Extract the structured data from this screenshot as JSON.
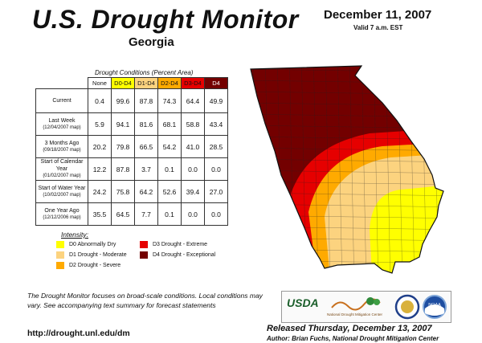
{
  "header": {
    "title": "U.S. Drought Monitor",
    "subtitle": "Georgia",
    "date": "December 11, 2007",
    "valid": "Valid 7 a.m. EST"
  },
  "table": {
    "caption": "Drought Conditions (Percent Area)",
    "columns": [
      "None",
      "D0-D4",
      "D1-D4",
      "D2-D4",
      "D3-D4",
      "D4"
    ],
    "column_colors": [
      "#ffffff",
      "#ffff00",
      "#fcd37f",
      "#ffaa00",
      "#e60000",
      "#730000"
    ],
    "rows": [
      {
        "label": "Current",
        "sub": "",
        "values": [
          "0.4",
          "99.6",
          "87.8",
          "74.3",
          "64.4",
          "49.9"
        ]
      },
      {
        "label": "Last Week",
        "sub": "(12/04/2007 map)",
        "values": [
          "5.9",
          "94.1",
          "81.6",
          "68.1",
          "58.8",
          "43.4"
        ]
      },
      {
        "label": "3 Months Ago",
        "sub": "(09/18/2007 map)",
        "values": [
          "20.2",
          "79.8",
          "66.5",
          "54.2",
          "41.0",
          "28.5"
        ]
      },
      {
        "label": "Start of Calendar Year",
        "sub": "(01/02/2007 map)",
        "values": [
          "12.2",
          "87.8",
          "3.7",
          "0.1",
          "0.0",
          "0.0"
        ]
      },
      {
        "label": "Start of Water Year",
        "sub": "(10/02/2007 map)",
        "values": [
          "24.2",
          "75.8",
          "64.2",
          "52.6",
          "39.4",
          "27.0"
        ]
      },
      {
        "label": "One Year Ago",
        "sub": "(12/12/2006 map)",
        "values": [
          "35.5",
          "64.5",
          "7.7",
          "0.1",
          "0.0",
          "0.0"
        ]
      }
    ]
  },
  "legend": {
    "title": "Intensity:",
    "items": [
      {
        "label": "D0 Abnormally Dry",
        "color": "#ffff00"
      },
      {
        "label": "D1 Drought - Moderate",
        "color": "#fcd37f"
      },
      {
        "label": "D2 Drought - Severe",
        "color": "#ffaa00"
      },
      {
        "label": "D3 Drought - Extreme",
        "color": "#e60000"
      },
      {
        "label": "D4 Drought - Exceptional",
        "color": "#730000"
      }
    ]
  },
  "footer": {
    "note": "The Drought Monitor focuses on broad-scale conditions. Local conditions may vary. See accompanying text summary for forecast statements",
    "url": "http://drought.unl.edu/dm",
    "released": "Released Thursday, December 13, 2007",
    "author": "Author: Brian Fuchs, National Drought Mitigation Center"
  },
  "logos": {
    "usda": "USDA",
    "ndmc": "National Drought Mitigation Center",
    "noaa": "NOAA"
  }
}
